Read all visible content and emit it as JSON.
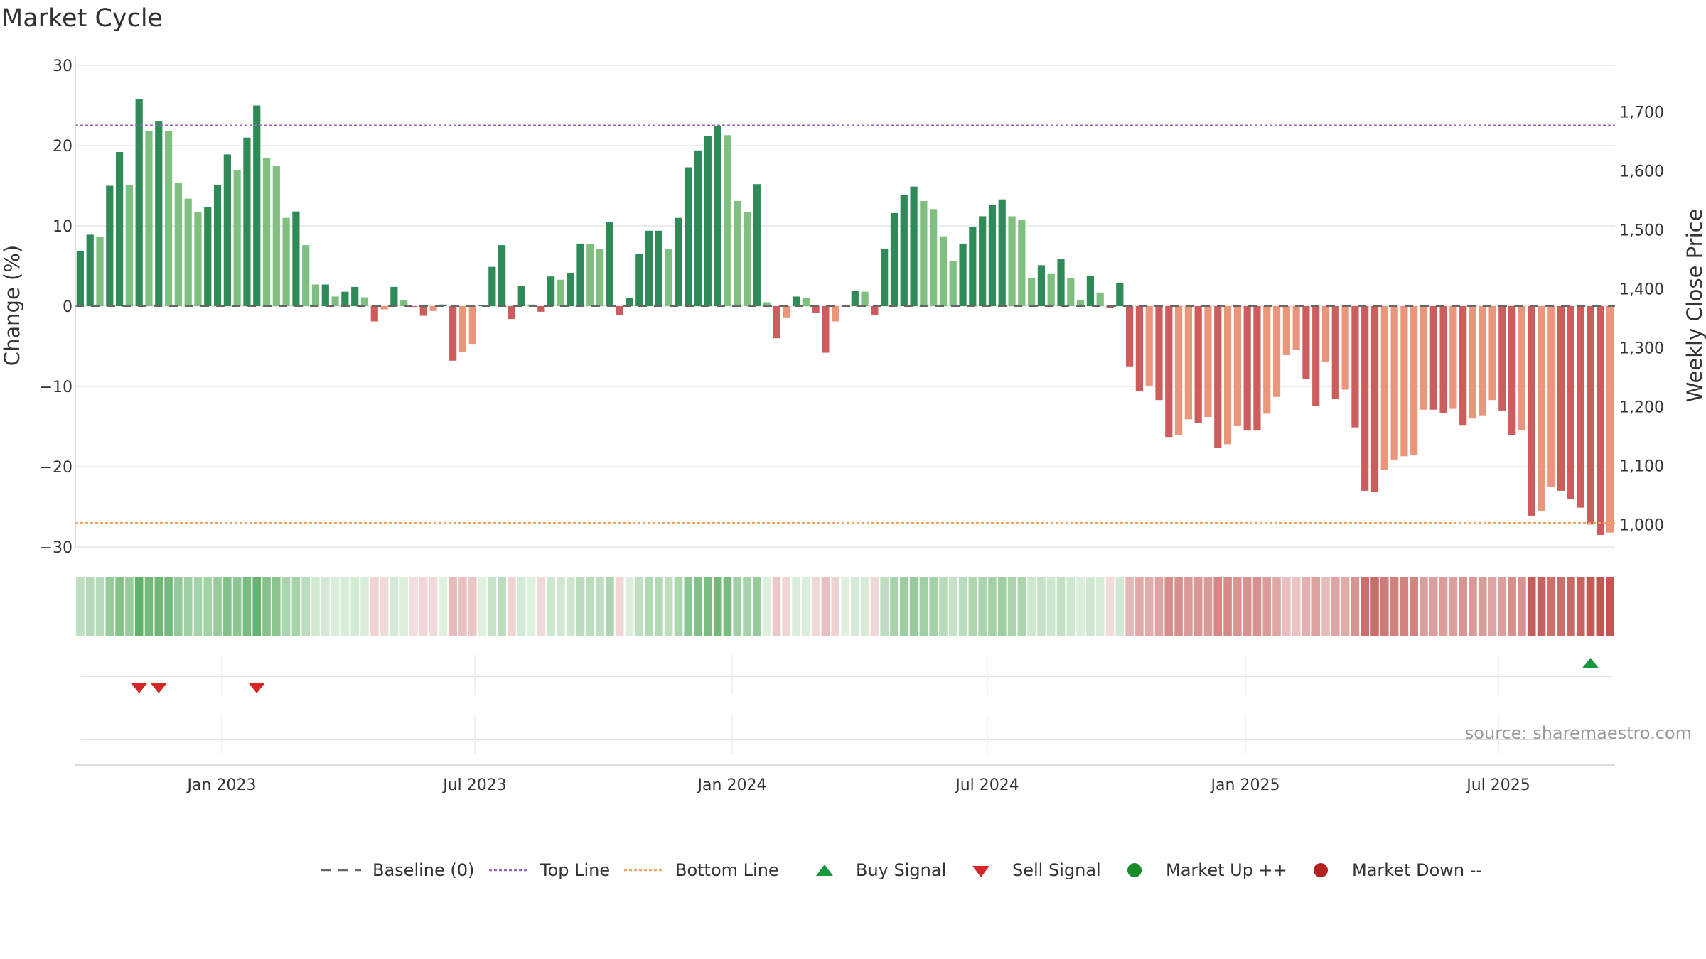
{
  "chart_data": {
    "type": "bar",
    "title": "Market Cycle",
    "ylabel_left": "Change (%)",
    "ylabel_right": "Weekly Close Price",
    "source": "source: sharemaestro.com",
    "y_left_range": [
      -30,
      30
    ],
    "y_left_ticks": [
      "30",
      "20",
      "10",
      "0",
      "−10",
      "−20",
      "−30"
    ],
    "y_right_ticks": [
      "1,700",
      "1,600",
      "1,500",
      "1,400",
      "1,300",
      "1,200",
      "1,100",
      "1,000"
    ],
    "x_ticks": [
      "Jan 2023",
      "Jul 2023",
      "Jan 2024",
      "Jul 2024",
      "Jan 2025",
      "Jul 2025"
    ],
    "top_line": 22.5,
    "bottom_line": -27,
    "grid": true,
    "legend_position": "bottom",
    "change_pct": [
      6.9,
      8.9,
      8.6,
      15,
      19.2,
      15.1,
      25.8,
      21.8,
      23,
      21.8,
      15.4,
      13.4,
      11.7,
      12.3,
      15.1,
      18.9,
      16.9,
      21,
      25,
      18.5,
      17.5,
      11,
      11.8,
      7.6,
      2.7,
      2.7,
      1.2,
      1.8,
      2.4,
      1.1,
      -1.9,
      -0.4,
      2.4,
      0.7,
      -0.1,
      -1.2,
      -0.6,
      0.2,
      -6.8,
      -5.7,
      -4.7,
      0.1,
      4.9,
      7.6,
      -1.6,
      2.5,
      0.2,
      -0.7,
      3.7,
      3.3,
      4.1,
      7.8,
      7.7,
      7.1,
      10.5,
      -1.1,
      1,
      6.5,
      9.4,
      9.4,
      7.1,
      11,
      17.3,
      19.4,
      21.2,
      22.4,
      21.3,
      13.1,
      11.7,
      15.2,
      0.5,
      -4,
      -1.4,
      1.2,
      1,
      -0.8,
      -5.8,
      -1.9,
      0,
      1.9,
      1.8,
      -1.1,
      7.1,
      11.6,
      13.9,
      14.9,
      13.1,
      12.1,
      8.7,
      5.6,
      7.8,
      9.9,
      11.2,
      12.6,
      13.3,
      11.2,
      10.7,
      3.5,
      5.1,
      4,
      5.9,
      3.5,
      0.8,
      3.8,
      1.7,
      -0.2,
      2.9,
      -7.5,
      -10.6,
      -9.9,
      -11.7,
      -16.3,
      -16.1,
      -14.1,
      -14.6,
      -13.8,
      -17.7,
      -17.2,
      -14.9,
      -15.5,
      -15.5,
      -13.4,
      -11.3,
      -6.1,
      -5.5,
      -9.1,
      -12.4,
      -6.9,
      -11.6,
      -10.4,
      -15.1,
      -23,
      -23.1,
      -20.4,
      -19.1,
      -18.7,
      -18.5,
      -12.9,
      -12.9,
      -13.3,
      -12.8,
      -14.8,
      -14,
      -13.6,
      -11.7,
      -13,
      -16.1,
      -15.4,
      -26.1,
      -25.5,
      -22.5,
      -23,
      -24,
      -25.1,
      -27.2,
      -28.5,
      -28.2
    ],
    "signals": [
      {
        "type": "sell",
        "week": 6
      },
      {
        "type": "sell",
        "week": 8
      },
      {
        "type": "sell",
        "week": 18
      },
      {
        "type": "buy",
        "week": 154
      }
    ],
    "colors": {
      "strong_up": "#2e8b57",
      "weak_up": "#7fbf7f",
      "strong_down": "#cd5c5c",
      "weak_down": "#e9967a",
      "top_line": "#9467bd",
      "bottom_line": "#f4a460",
      "baseline": "#666666",
      "buy": "#1a9641",
      "sell": "#d62728",
      "market_up": "#1a8a2a",
      "market_down": "#b22222"
    },
    "legend": [
      {
        "label": "Baseline (0)",
        "kind": "dashline",
        "color": "#666666"
      },
      {
        "label": "Top Line",
        "kind": "dotline",
        "color": "#9467bd"
      },
      {
        "label": "Bottom Line",
        "kind": "dotline",
        "color": "#f4a460"
      },
      {
        "label": "Buy Signal",
        "kind": "tri-up",
        "color": "#1a9641"
      },
      {
        "label": "Sell Signal",
        "kind": "tri-down",
        "color": "#d62728"
      },
      {
        "label": "Market Up ++",
        "kind": "circle",
        "color": "#1a8a2a"
      },
      {
        "label": "Market Down --",
        "kind": "circle",
        "color": "#b22222"
      }
    ]
  }
}
